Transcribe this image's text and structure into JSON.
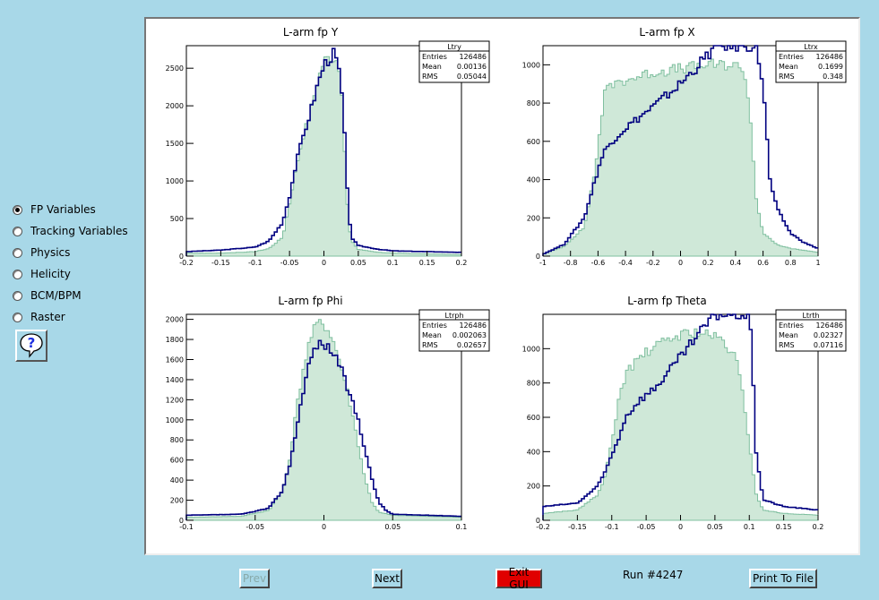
{
  "sidebar": {
    "options": [
      {
        "label": "FP Variables",
        "checked": true
      },
      {
        "label": "Tracking Variables",
        "checked": false
      },
      {
        "label": "Physics",
        "checked": false
      },
      {
        "label": "Helicity",
        "checked": false
      },
      {
        "label": "BCM/BPM",
        "checked": false
      },
      {
        "label": "Raster",
        "checked": false
      }
    ],
    "help_icon": "question-mark-icon"
  },
  "buttons": {
    "prev": "Prev",
    "next": "Next",
    "exit": "Exit GUI",
    "print": "Print To File"
  },
  "run_label": "Run #4247",
  "colors": {
    "background": "#a8d8e8",
    "run_histogram": "#000080",
    "reference_histogram": "#7fbf9f",
    "exit_button": "#e00000"
  },
  "chart_data": [
    {
      "type": "histogram",
      "title": "L-arm fp Y",
      "stats": {
        "name": "Ltry",
        "rows": [
          [
            "Entries",
            "126486"
          ],
          [
            "Mean",
            "0.00136"
          ],
          [
            "RMS",
            "0.05044"
          ]
        ]
      },
      "xlim": [
        -0.2,
        0.2
      ],
      "ylim": [
        0,
        2800
      ],
      "xticks": [
        -0.2,
        -0.15,
        -0.1,
        -0.05,
        0,
        0.05,
        0.1,
        0.15,
        0.2
      ],
      "xtick_labels": [
        "-0.2",
        "-0.15",
        "-0.1",
        "-0.05",
        "0",
        "0.05",
        "0.1",
        "0.15",
        "0.2"
      ],
      "yticks": [
        0,
        500,
        1000,
        1500,
        2000,
        2500
      ],
      "ytick_labels": [
        "0",
        "500",
        "1000",
        "1500",
        "2000",
        "2500"
      ],
      "series": [
        {
          "name": "",
          "style": "filled",
          "color": "#7fbf9f",
          "x": [
            -0.2,
            -0.15,
            -0.1,
            -0.08,
            -0.06,
            -0.05,
            -0.04,
            -0.03,
            -0.02,
            -0.01,
            0,
            0.01,
            0.02,
            0.025,
            0.03,
            0.035,
            0.04,
            0.05,
            0.08,
            0.1,
            0.15,
            0.2
          ],
          "y": [
            40,
            40,
            60,
            100,
            250,
            700,
            1200,
            1600,
            1900,
            2300,
            2600,
            2650,
            2600,
            2400,
            1400,
            500,
            200,
            90,
            50,
            40,
            30,
            20
          ]
        },
        {
          "name": "",
          "style": "line",
          "color": "#000080",
          "x": [
            -0.2,
            -0.15,
            -0.1,
            -0.08,
            -0.06,
            -0.05,
            -0.04,
            -0.03,
            -0.02,
            -0.01,
            0,
            0.01,
            0.015,
            0.02,
            0.025,
            0.03,
            0.035,
            0.04,
            0.05,
            0.08,
            0.1,
            0.15,
            0.2
          ],
          "y": [
            60,
            80,
            120,
            200,
            450,
            800,
            1250,
            1600,
            1900,
            2250,
            2550,
            2650,
            2700,
            2550,
            2300,
            1600,
            700,
            250,
            140,
            90,
            70,
            60,
            50
          ]
        }
      ]
    },
    {
      "type": "histogram",
      "title": "L-arm fp X",
      "stats": {
        "name": "Ltrx",
        "rows": [
          [
            "Entries",
            "126486"
          ],
          [
            "Mean",
            "0.1699"
          ],
          [
            "RMS",
            "0.348"
          ]
        ]
      },
      "xlim": [
        -1,
        1
      ],
      "ylim": [
        0,
        1100
      ],
      "xticks": [
        -1,
        -0.8,
        -0.6,
        -0.4,
        -0.2,
        0,
        0.2,
        0.4,
        0.6,
        0.8,
        1
      ],
      "xtick_labels": [
        "-1",
        "-0.8",
        "-0.6",
        "-0.4",
        "-0.2",
        "0",
        "0.2",
        "0.4",
        "0.6",
        "0.8",
        "1"
      ],
      "yticks": [
        0,
        200,
        400,
        600,
        800,
        1000
      ],
      "ytick_labels": [
        "0",
        "200",
        "400",
        "600",
        "800",
        "1000"
      ],
      "series": [
        {
          "name": "",
          "style": "filled",
          "color": "#7fbf9f",
          "x": [
            -1,
            -0.85,
            -0.7,
            -0.62,
            -0.58,
            -0.55,
            -0.5,
            -0.4,
            -0.2,
            0,
            0.2,
            0.35,
            0.45,
            0.5,
            0.55,
            0.6,
            0.7,
            0.8,
            0.9,
            1
          ],
          "y": [
            10,
            50,
            150,
            450,
            700,
            850,
            900,
            920,
            960,
            980,
            1000,
            1000,
            990,
            800,
            300,
            120,
            60,
            40,
            30,
            20
          ]
        },
        {
          "name": "",
          "style": "line",
          "color": "#000080",
          "x": [
            -1,
            -0.85,
            -0.7,
            -0.62,
            -0.58,
            -0.55,
            -0.5,
            -0.4,
            -0.2,
            0,
            0.2,
            0.25,
            0.3,
            0.45,
            0.55,
            0.6,
            0.65,
            0.7,
            0.8,
            0.9,
            1
          ],
          "y": [
            10,
            60,
            200,
            400,
            500,
            550,
            600,
            670,
            780,
            900,
            1050,
            1100,
            1100,
            1100,
            1100,
            900,
            400,
            250,
            120,
            70,
            40
          ]
        }
      ]
    },
    {
      "type": "histogram",
      "title": "L-arm fp Phi",
      "stats": {
        "name": "Ltrph",
        "rows": [
          [
            "Entries",
            "126486"
          ],
          [
            "Mean",
            "0.002063"
          ],
          [
            "RMS",
            "0.02657"
          ]
        ]
      },
      "xlim": [
        -0.1,
        0.1
      ],
      "ylim": [
        0,
        2050
      ],
      "xticks": [
        -0.1,
        -0.05,
        0,
        0.05,
        0.1
      ],
      "xtick_labels": [
        "-0.1",
        "-0.05",
        "0",
        "0.05",
        "0.1"
      ],
      "yticks": [
        0,
        200,
        400,
        600,
        800,
        1000,
        1200,
        1400,
        1600,
        1800,
        2000
      ],
      "ytick_labels": [
        "0",
        "200",
        "400",
        "600",
        "800",
        "1000",
        "1200",
        "1400",
        "1600",
        "1800",
        "2000"
      ],
      "series": [
        {
          "name": "",
          "style": "filled",
          "color": "#7fbf9f",
          "x": [
            -0.1,
            -0.06,
            -0.04,
            -0.03,
            -0.025,
            -0.02,
            -0.015,
            -0.01,
            -0.005,
            0,
            0.005,
            0.01,
            0.015,
            0.02,
            0.025,
            0.03,
            0.035,
            0.04,
            0.05,
            0.1
          ],
          "y": [
            30,
            40,
            100,
            300,
            600,
            1100,
            1500,
            1800,
            1950,
            1950,
            1850,
            1650,
            1400,
            1100,
            750,
            400,
            180,
            80,
            50,
            30
          ]
        },
        {
          "name": "",
          "style": "line",
          "color": "#000080",
          "x": [
            -0.1,
            -0.06,
            -0.04,
            -0.03,
            -0.025,
            -0.02,
            -0.015,
            -0.01,
            -0.005,
            0,
            0.005,
            0.01,
            0.015,
            0.02,
            0.025,
            0.03,
            0.035,
            0.04,
            0.045,
            0.05,
            0.1
          ],
          "y": [
            50,
            60,
            120,
            300,
            550,
            900,
            1300,
            1600,
            1750,
            1750,
            1700,
            1600,
            1400,
            1200,
            1000,
            700,
            400,
            180,
            100,
            60,
            40
          ]
        }
      ]
    },
    {
      "type": "histogram",
      "title": "L-arm fp Theta",
      "stats": {
        "name": "Ltrth",
        "rows": [
          [
            "Entries",
            "126486"
          ],
          [
            "Mean",
            "0.02327"
          ],
          [
            "RMS",
            "0.07116"
          ]
        ]
      },
      "xlim": [
        -0.2,
        0.2
      ],
      "ylim": [
        0,
        1200
      ],
      "xticks": [
        -0.2,
        -0.15,
        -0.1,
        -0.05,
        0,
        0.05,
        0.1,
        0.15,
        0.2
      ],
      "xtick_labels": [
        "-0.2",
        "-0.15",
        "-0.1",
        "-0.05",
        "0",
        "0.05",
        "0.1",
        "0.15",
        "0.2"
      ],
      "yticks": [
        0,
        200,
        400,
        600,
        800,
        1000
      ],
      "ytick_labels": [
        "0",
        "200",
        "400",
        "600",
        "800",
        "1000"
      ],
      "series": [
        {
          "name": "",
          "style": "filled",
          "color": "#7fbf9f",
          "x": [
            -0.2,
            -0.15,
            -0.12,
            -0.11,
            -0.1,
            -0.09,
            -0.08,
            -0.06,
            -0.04,
            -0.02,
            0,
            0.02,
            0.04,
            0.06,
            0.08,
            0.09,
            0.1,
            0.11,
            0.12,
            0.15,
            0.2
          ],
          "y": [
            40,
            60,
            150,
            250,
            450,
            700,
            850,
            950,
            1000,
            1050,
            1080,
            1100,
            1080,
            1050,
            950,
            750,
            450,
            150,
            60,
            40,
            30
          ]
        },
        {
          "name": "",
          "style": "line",
          "color": "#000080",
          "x": [
            -0.2,
            -0.15,
            -0.12,
            -0.11,
            -0.1,
            -0.09,
            -0.08,
            -0.06,
            -0.04,
            -0.02,
            0,
            0.02,
            0.04,
            0.05,
            0.06,
            0.08,
            0.1,
            0.105,
            0.11,
            0.12,
            0.15,
            0.2
          ],
          "y": [
            80,
            100,
            200,
            280,
            380,
            480,
            600,
            700,
            760,
            850,
            950,
            1050,
            1150,
            1200,
            1200,
            1200,
            1200,
            900,
            400,
            120,
            80,
            60
          ]
        }
      ]
    }
  ]
}
